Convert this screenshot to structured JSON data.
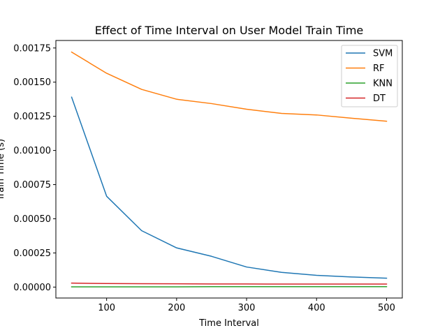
{
  "chart_data": {
    "type": "line",
    "title": "Effect of Time Interval on User Model Train Time",
    "xlabel": "Time Interval",
    "ylabel": "Train Time (s)",
    "xlim": [
      27.5,
      522.5
    ],
    "ylim": [
      -8e-05,
      0.001805
    ],
    "x_ticks": [
      100,
      200,
      300,
      400,
      500
    ],
    "x_tick_labels": [
      "100",
      "200",
      "300",
      "400",
      "500"
    ],
    "y_ticks": [
      0,
      0.00025,
      0.0005,
      0.00075,
      0.001,
      0.00125,
      0.0015,
      0.00175
    ],
    "y_tick_labels": [
      "0.00000",
      "0.00025",
      "0.00050",
      "0.00075",
      "0.00100",
      "0.00125",
      "0.00150",
      "0.00175"
    ],
    "grid": false,
    "legend_position": "top-right",
    "x": [
      50,
      100,
      150,
      200,
      250,
      300,
      350,
      400,
      450,
      500
    ],
    "series": [
      {
        "name": "SVM",
        "color": "#1f77b4",
        "values": [
          0.00139,
          0.000665,
          0.000413,
          0.000287,
          0.000225,
          0.000147,
          0.000108,
          8.6e-05,
          7.4e-05,
          6.5e-05
        ]
      },
      {
        "name": "RF",
        "color": "#ff7f0e",
        "values": [
          0.00172,
          0.001565,
          0.001447,
          0.001375,
          0.001343,
          0.001302,
          0.001271,
          0.00126,
          0.001236,
          0.001214
        ]
      },
      {
        "name": "KNN",
        "color": "#2ca02c",
        "values": [
          2e-06,
          2e-06,
          2e-06,
          2e-06,
          3e-06,
          3e-06,
          3e-06,
          3e-06,
          3e-06,
          3e-06
        ]
      },
      {
        "name": "DT",
        "color": "#d62728",
        "values": [
          2.9e-05,
          2.6e-05,
          2.5e-05,
          2.4e-05,
          2.3e-05,
          2.3e-05,
          2.2e-05,
          2.2e-05,
          2.2e-05,
          2.2e-05
        ]
      }
    ]
  }
}
